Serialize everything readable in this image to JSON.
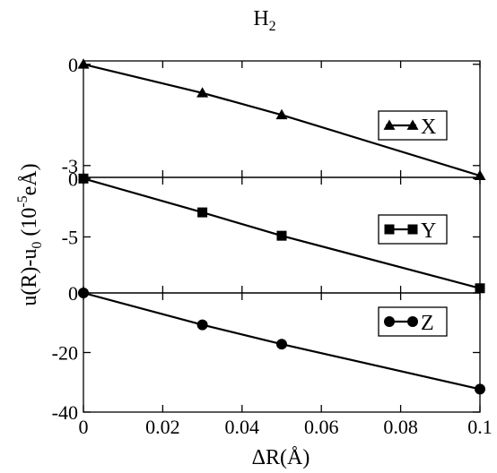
{
  "chart_data": {
    "type": "line",
    "title": "H",
    "title_sub": "2",
    "xlabel": "ΔR(Å)",
    "ylabel_main": "u(R)-u",
    "ylabel_sub": "0",
    "ylabel_units_open": "(10",
    "ylabel_units_exp": "-5",
    "ylabel_units_close": "eÅ)",
    "xlim": [
      0,
      0.1
    ],
    "x_ticks": [
      "0",
      "0.02",
      "0.04",
      "0.06",
      "0.08",
      "0.1"
    ],
    "x_tick_values": [
      0,
      0.02,
      0.04,
      0.06,
      0.08,
      0.1
    ],
    "grid": false,
    "legend_position": "right",
    "panels": [
      {
        "name": "X",
        "marker": "triangle",
        "ylim": [
          -3.35,
          0.1
        ],
        "y_ticks": [
          "0",
          "-3"
        ],
        "y_tick_values": [
          0,
          -3
        ],
        "x": [
          0,
          0.03,
          0.05,
          0.1
        ],
        "y": [
          0,
          -0.85,
          -1.5,
          -3.3
        ]
      },
      {
        "name": "Y",
        "marker": "square",
        "ylim": [
          -9.8,
          0.1
        ],
        "y_ticks": [
          "0",
          "-5"
        ],
        "y_tick_values": [
          0,
          -5
        ],
        "x": [
          0,
          0.03,
          0.05,
          0.1
        ],
        "y": [
          0,
          -2.9,
          -4.9,
          -9.4
        ]
      },
      {
        "name": "Z",
        "marker": "circle",
        "ylim": [
          -40,
          0
        ],
        "y_ticks": [
          "0",
          "-20",
          "-40"
        ],
        "y_tick_values": [
          0,
          -20,
          -40
        ],
        "x": [
          0,
          0.03,
          0.05,
          0.1
        ],
        "y": [
          0,
          -10.7,
          -17.2,
          -32.3
        ]
      }
    ]
  }
}
